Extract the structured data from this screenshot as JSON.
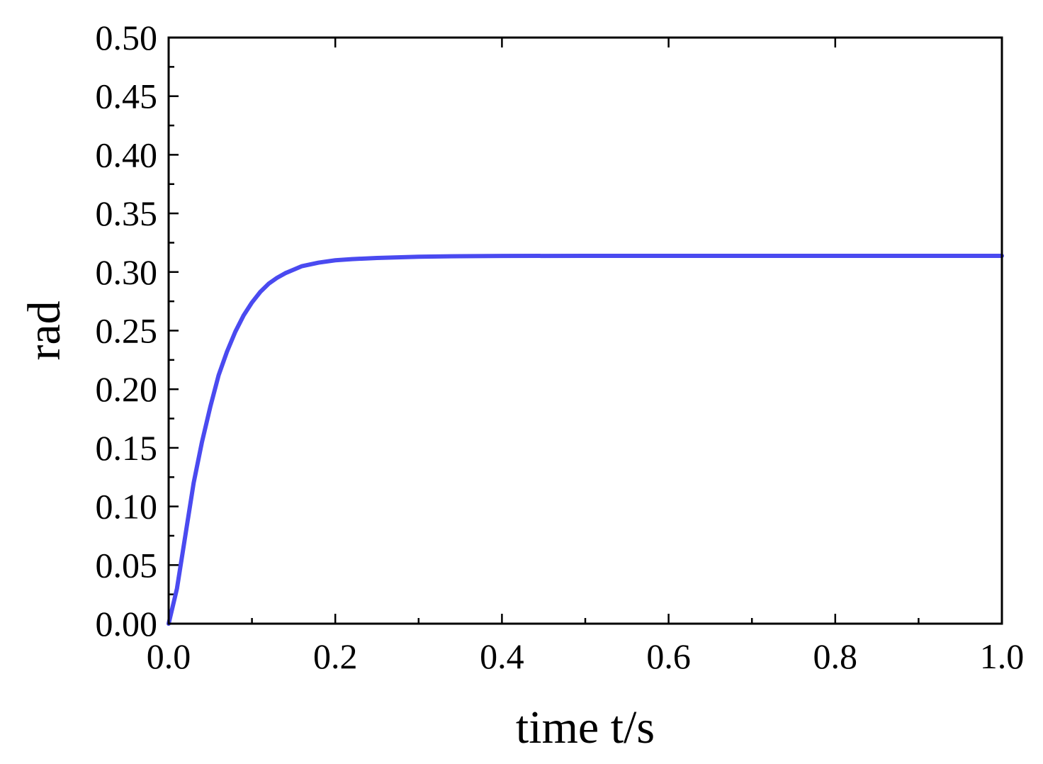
{
  "chart_data": {
    "type": "line",
    "title": "",
    "xlabel": "time t/s",
    "ylabel": "rad",
    "xlim": [
      0.0,
      1.0
    ],
    "ylim": [
      0.0,
      0.5
    ],
    "x_ticks": [
      "0.0",
      "0.2",
      "0.4",
      "0.6",
      "0.8",
      "1.0"
    ],
    "y_ticks": [
      "0.00",
      "0.05",
      "0.10",
      "0.15",
      "0.20",
      "0.25",
      "0.30",
      "0.35",
      "0.40",
      "0.45",
      "0.50"
    ],
    "grid": false,
    "legend": "none",
    "series": [
      {
        "color": "#4a4af0",
        "x": [
          0.0,
          0.01,
          0.02,
          0.03,
          0.04,
          0.05,
          0.06,
          0.07,
          0.08,
          0.09,
          0.1,
          0.11,
          0.12,
          0.13,
          0.14,
          0.15,
          0.16,
          0.18,
          0.2,
          0.22,
          0.25,
          0.3,
          0.35,
          0.4,
          0.5,
          0.6,
          0.7,
          0.8,
          0.9,
          1.0
        ],
        "y": [
          0.0,
          0.03,
          0.075,
          0.12,
          0.155,
          0.185,
          0.212,
          0.232,
          0.249,
          0.263,
          0.274,
          0.283,
          0.29,
          0.295,
          0.299,
          0.302,
          0.305,
          0.308,
          0.31,
          0.311,
          0.312,
          0.313,
          0.3135,
          0.3137,
          0.3138,
          0.3138,
          0.3138,
          0.3138,
          0.3138,
          0.3138
        ]
      }
    ]
  }
}
